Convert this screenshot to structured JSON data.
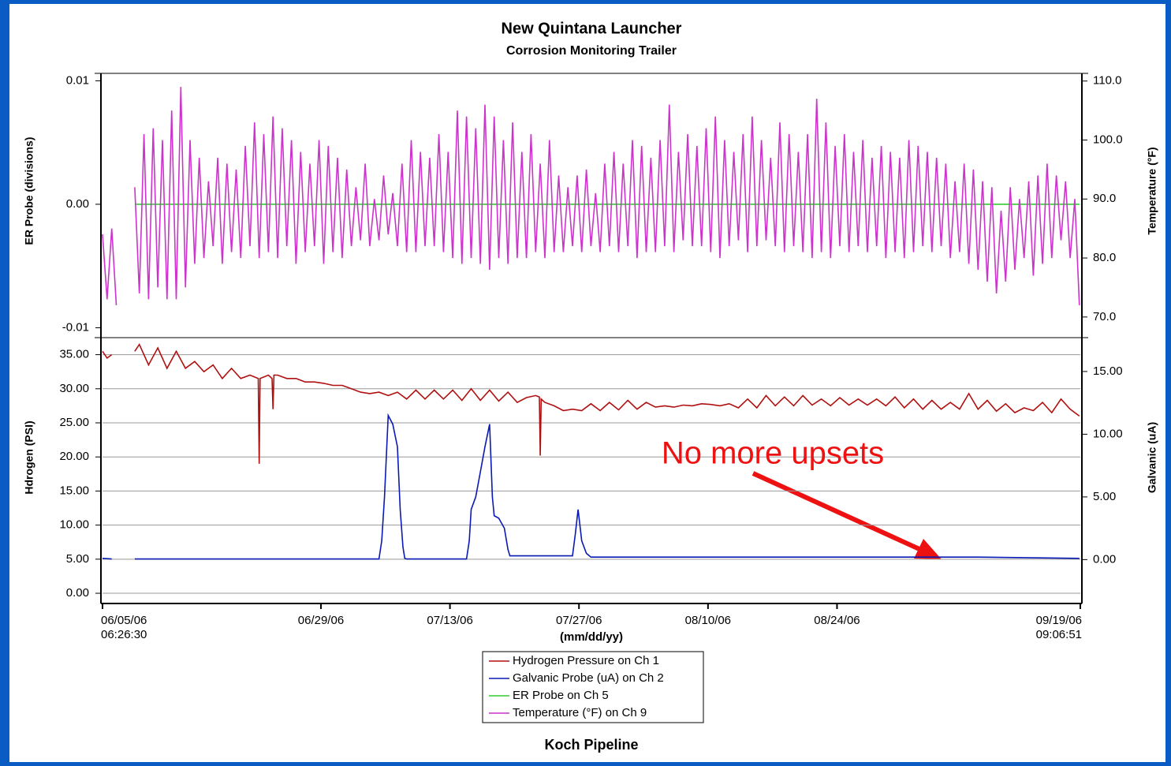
{
  "chart_data": [
    {
      "type": "line",
      "title": "New Quintana Launcher",
      "subtitle": "Corrosion Monitoring Trailer",
      "ylabel": "ER Probe (divisions)",
      "y2label": "Temperature (°F)",
      "xlim": [
        0,
        106.1
      ],
      "ylim": [
        -0.0108,
        0.0106
      ],
      "yticks": [
        {
          "value": -0.01,
          "label": "-0.01"
        },
        {
          "value": 0,
          "label": "0.00"
        },
        0.01
      ],
      "y2lim": [
        66.5,
        111.3
      ],
      "y2ticks": [
        {
          "value": 70,
          "label": "70.0"
        },
        {
          "value": 80,
          "label": "80.0"
        },
        {
          "value": 90,
          "label": "90.0"
        },
        {
          "value": 100,
          "label": "100.0"
        },
        {
          "value": 110,
          "label": "110.0"
        }
      ],
      "grid": false,
      "series": [
        {
          "name": "ER Probe on Ch 5",
          "color": "#33cc33",
          "axis": "y",
          "x": [
            3.5,
            106
          ],
          "values": [
            0,
            0
          ]
        },
        {
          "name": "Temperature (°F) on Ch 9",
          "color": "#cc33cc",
          "axis": "y2",
          "x": [
            0,
            0.5,
            1,
            1.5,
            2,
            2.5,
            3,
            3.5,
            4,
            4.5,
            5,
            5.5,
            6,
            6.5,
            7,
            7.5,
            8,
            8.5,
            9,
            9.5,
            10,
            10.5,
            11,
            11.5,
            12,
            12.5,
            13,
            13.5,
            14,
            14.5,
            15,
            15.5,
            16,
            16.5,
            17,
            17.5,
            18,
            18.5,
            19,
            19.5,
            20,
            20.5,
            21,
            21.5,
            22,
            22.5,
            23,
            23.5,
            24,
            24.5,
            25,
            25.5,
            26,
            26.5,
            27,
            27.5,
            28,
            28.5,
            29,
            29.5,
            30,
            30.5,
            31,
            31.5,
            32,
            32.5,
            33,
            33.5,
            34,
            34.5,
            35,
            35.5,
            36,
            36.5,
            37,
            37.5,
            38,
            38.5,
            39,
            39.5,
            40,
            40.5,
            41,
            41.5,
            42,
            42.5,
            43,
            43.5,
            44,
            44.5,
            45,
            45.5,
            46,
            46.5,
            47,
            47.5,
            48,
            48.5,
            49,
            49.5,
            50,
            50.5,
            51,
            51.5,
            52,
            52.5,
            53,
            53.5,
            54,
            54.5,
            55,
            55.5,
            56,
            56.5,
            57,
            57.5,
            58,
            58.5,
            59,
            59.5,
            60,
            60.5,
            61,
            61.5,
            62,
            62.5,
            63,
            63.5,
            64,
            64.5,
            65,
            65.5,
            66,
            66.5,
            67,
            67.5,
            68,
            68.5,
            69,
            69.5,
            70,
            70.5,
            71,
            71.5,
            72,
            72.5,
            73,
            73.5,
            74,
            74.5,
            75,
            75.5,
            76,
            76.5,
            77,
            77.5,
            78,
            78.5,
            79,
            79.5,
            80,
            80.5,
            81,
            81.5,
            82,
            82.5,
            83,
            83.5,
            84,
            84.5,
            85,
            85.5,
            86,
            86.5,
            87,
            87.5,
            88,
            88.5,
            89,
            89.5,
            90,
            90.5,
            91,
            91.5,
            92,
            92.5,
            93,
            93.5,
            94,
            94.5,
            95,
            95.5,
            96,
            96.5,
            97,
            97.5,
            98,
            98.5,
            99,
            99.5,
            100,
            100.5,
            101,
            101.5,
            102,
            102.5,
            103,
            103.5,
            104,
            104.5,
            105,
            105.5,
            106
          ],
          "values": [
            84,
            73,
            85,
            72,
            null,
            null,
            null,
            92,
            74,
            101,
            73,
            102,
            75,
            100,
            73,
            105,
            73,
            109,
            75,
            100,
            79,
            97,
            80,
            93,
            82,
            97,
            79,
            96,
            81,
            95,
            80,
            99,
            82,
            103,
            80,
            101,
            81,
            104,
            80,
            102,
            82,
            100,
            79,
            98,
            81,
            96,
            82,
            100,
            79,
            99,
            81,
            97,
            80,
            95,
            82,
            92,
            83,
            96,
            82,
            90,
            83,
            94,
            84,
            91,
            82,
            96,
            81,
            100,
            81,
            98,
            82,
            97,
            82,
            101,
            81,
            98,
            80,
            105,
            79,
            104,
            80,
            102,
            79,
            106,
            78,
            104,
            80,
            100,
            79,
            103,
            80,
            98,
            80,
            101,
            81,
            96,
            80,
            100,
            81,
            94,
            81,
            92,
            82,
            94,
            81,
            95,
            82,
            91,
            81,
            96,
            82,
            98,
            81,
            96,
            82,
            100,
            80,
            99,
            81,
            97,
            81,
            100,
            82,
            106,
            81,
            98,
            83,
            101,
            82,
            99,
            82,
            102,
            81,
            104,
            80,
            100,
            82,
            98,
            83,
            101,
            81,
            104,
            82,
            100,
            83,
            97,
            82,
            103,
            81,
            101,
            82,
            98,
            81,
            101,
            80,
            107,
            81,
            103,
            80,
            99,
            82,
            101,
            81,
            98,
            82,
            100,
            81,
            97,
            82,
            99,
            80,
            98,
            81,
            97,
            80,
            100,
            81,
            99,
            82,
            98,
            81,
            97,
            82,
            96,
            80,
            93,
            81,
            96,
            79,
            95,
            78,
            93,
            76,
            92,
            74,
            88,
            76,
            92,
            78,
            90,
            80,
            93,
            77,
            94,
            79,
            96,
            80,
            94,
            83,
            93,
            80,
            90,
            72
          ]
        }
      ]
    },
    {
      "type": "line",
      "ylabel": "Hdrogen (PSI)",
      "y2label": "Galvanic (uA)",
      "xlabel": "(mm/dd/yy)",
      "xlim": [
        0,
        106.1
      ],
      "xticks": [
        {
          "value": 0,
          "label": "06/05/06\n06:26:30"
        },
        {
          "value": 23.7,
          "label": "06/29/06"
        },
        {
          "value": 37.7,
          "label": "07/13/06"
        },
        {
          "value": 51.7,
          "label": "07/27/06"
        },
        {
          "value": 65.7,
          "label": "08/10/06"
        },
        {
          "value": 79.7,
          "label": "08/24/06"
        },
        {
          "value": 106.1,
          "label": "09/19/06\n09:06:51"
        }
      ],
      "ylim": [
        -1.5,
        37.5
      ],
      "yticks": [
        {
          "value": 0,
          "label": "0.00"
        },
        {
          "value": 5,
          "label": "5.00"
        },
        {
          "value": 10,
          "label": "10.00"
        },
        {
          "value": 15,
          "label": "15.00"
        },
        {
          "value": 20,
          "label": "20.00"
        },
        {
          "value": 25,
          "label": "25.00"
        },
        {
          "value": 30,
          "label": "30.00"
        },
        {
          "value": 35,
          "label": "35.00"
        }
      ],
      "y2lim": [
        -3.5,
        17.7
      ],
      "y2ticks": [
        {
          "value": 0,
          "label": "0.00"
        },
        {
          "value": 5,
          "label": "5.00"
        },
        {
          "value": 10,
          "label": "10.00"
        },
        {
          "value": 15,
          "label": "15.00"
        }
      ],
      "grid": true,
      "legend": "bottom",
      "annotation": "No more upsets",
      "footer": "Koch Pipeline",
      "series": [
        {
          "name": "Hydrogen Pressure on Ch 1",
          "color": "#b01010",
          "axis": "y",
          "x": [
            0,
            0.5,
            1,
            1.6,
            3.5,
            4,
            5,
            6,
            7,
            8,
            9,
            10,
            11,
            12,
            13,
            14,
            15,
            16,
            16.9,
            17,
            17.1,
            18,
            18.4,
            18.5,
            18.6,
            19,
            20,
            21,
            22,
            23,
            24,
            25,
            26,
            27,
            28,
            29,
            30,
            31,
            32,
            33,
            34,
            35,
            36,
            37,
            38,
            39,
            40,
            41,
            42,
            43,
            44,
            45,
            46,
            47,
            47.4,
            47.5,
            47.6,
            48,
            49,
            50,
            51,
            52,
            53,
            54,
            55,
            56,
            57,
            58,
            59,
            60,
            61,
            62,
            63,
            64,
            65,
            66,
            67,
            68,
            69,
            70,
            71,
            72,
            73,
            74,
            75,
            76,
            77,
            78,
            79,
            80,
            81,
            82,
            83,
            84,
            85,
            86,
            87,
            88,
            89,
            90,
            91,
            92,
            93,
            94,
            95,
            96,
            97,
            98,
            99,
            100,
            101,
            102,
            103,
            104,
            105,
            106
          ],
          "values": [
            35.5,
            34.5,
            35,
            null,
            35.5,
            36.5,
            33.5,
            36,
            33,
            35.5,
            33,
            34,
            32.5,
            33.5,
            31.5,
            33,
            31.5,
            32,
            31.5,
            19,
            31.5,
            32,
            31.5,
            27,
            32,
            32,
            31.5,
            31.5,
            31,
            31,
            30.8,
            30.5,
            30.5,
            30,
            29.5,
            29.3,
            29.5,
            29,
            29.5,
            28.5,
            29.8,
            28.5,
            29.8,
            28.5,
            29.8,
            28.3,
            30,
            28.3,
            29.8,
            28.2,
            29.5,
            28,
            28.7,
            29,
            28.8,
            20.2,
            28.5,
            28,
            27.5,
            26.8,
            27,
            26.8,
            27.8,
            26.8,
            28,
            26.9,
            28.3,
            27,
            28,
            27.3,
            27.5,
            27.3,
            27.6,
            27.5,
            27.8,
            27.7,
            27.5,
            27.8,
            27.2,
            28.5,
            27.2,
            29,
            27.5,
            28.8,
            27.5,
            29,
            27.6,
            28.5,
            27.5,
            28.7,
            27.6,
            28.5,
            27.6,
            28.5,
            27.5,
            28.8,
            27.2,
            28.5,
            27,
            28.3,
            27,
            28,
            27,
            29.3,
            27,
            28.3,
            26.7,
            27.8,
            26.5,
            27.2,
            26.8,
            28,
            26.5,
            28.5,
            27,
            26
          ]
        },
        {
          "name": "Galvanic Probe (uA) on Ch 2",
          "color": "#0a1ab4",
          "axis": "y2",
          "x": [
            0,
            1,
            1.6,
            3.5,
            10,
            20,
            30,
            30.3,
            30.6,
            31,
            31.5,
            32,
            32.3,
            32.6,
            32.8,
            33,
            39.5,
            39.8,
            40,
            40.5,
            41,
            41.5,
            42,
            42.3,
            42.5,
            43,
            43.6,
            44,
            44.2,
            45,
            50.5,
            51,
            51.3,
            51.6,
            52,
            52.5,
            53,
            60,
            70,
            80,
            90,
            95,
            106
          ],
          "values": [
            0.1,
            0.05,
            null,
            0.05,
            0.05,
            0.05,
            0.05,
            1.5,
            5,
            11.5,
            10.8,
            9,
            4,
            1,
            0.1,
            0.05,
            0.05,
            1.5,
            4,
            5,
            7,
            9,
            10.8,
            5,
            3.5,
            3.3,
            2.5,
            0.8,
            0.3,
            0.3,
            0.3,
            0.3,
            2,
            4,
            1.5,
            0.5,
            0.2,
            0.2,
            0.2,
            0.2,
            0.2,
            0.2,
            0.1
          ]
        }
      ]
    }
  ]
}
